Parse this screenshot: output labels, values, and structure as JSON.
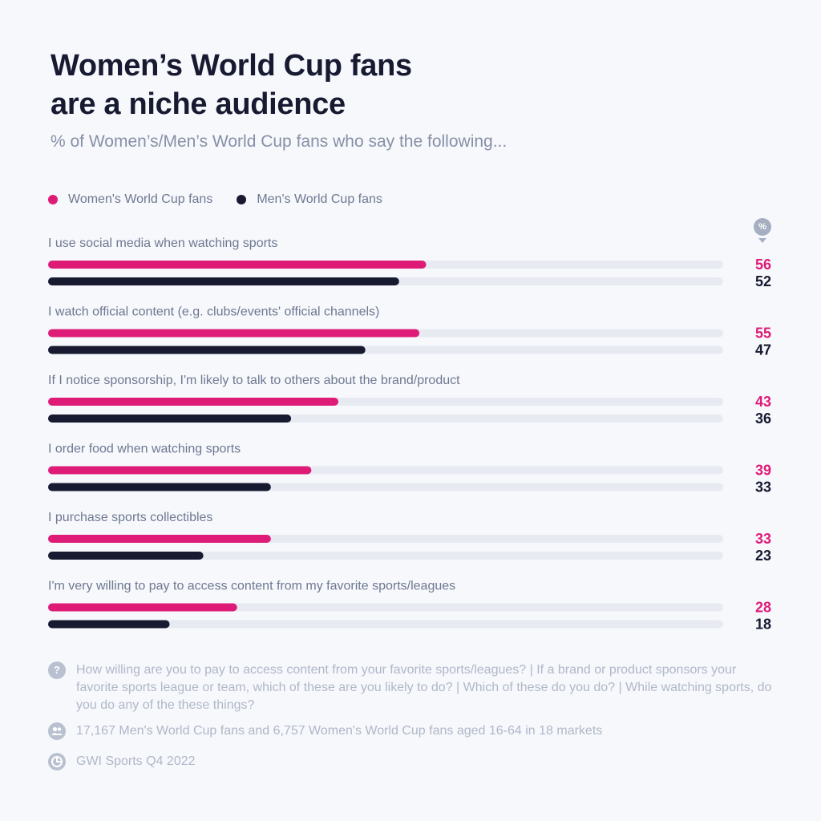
{
  "header": {
    "title_line1": "Women’s World Cup fans",
    "title_line2": "are a niche audience",
    "subtitle": "% of Women’s/Men’s World Cup fans who say the following..."
  },
  "legend": [
    {
      "label": "Women's World Cup fans",
      "color": "#df1b78"
    },
    {
      "label": "Men's World Cup fans",
      "color": "#171a30"
    }
  ],
  "unit_badge": "%",
  "chart_data": {
    "type": "bar",
    "orientation": "horizontal",
    "xlim": [
      0,
      100
    ],
    "grid": false,
    "legend_placement": "top-left",
    "categories": [
      "I use social media when watching sports",
      "I watch official content (e.g. clubs/events' official channels)",
      "If I notice sponsorship, I'm likely to talk to others about the brand/product",
      "I order food when watching sports",
      "I purchase sports collectibles",
      "I'm very willing to pay to access content from my favorite sports/leagues"
    ],
    "series": [
      {
        "name": "Women's World Cup fans",
        "color": "#df1b78",
        "values": [
          56,
          55,
          43,
          39,
          33,
          28
        ]
      },
      {
        "name": "Men's World Cup fans",
        "color": "#171a30",
        "values": [
          52,
          47,
          36,
          33,
          23,
          18
        ]
      }
    ]
  },
  "footer": {
    "question_icon": "question-icon",
    "question": "How willing are you to pay to access content from your favorite sports/leagues? | If a brand or product sponsors your favorite sports league or team, which of these are you likely to do? | Which of these do you do? | While watching sports, do you do any of the these things?",
    "sample_icon": "people-icon",
    "sample": "17,167 Men's World Cup fans and 6,757 Women's World Cup fans aged 16-64 in 18 markets",
    "source_icon": "source-icon",
    "source": "GWI Sports Q4 2022"
  }
}
